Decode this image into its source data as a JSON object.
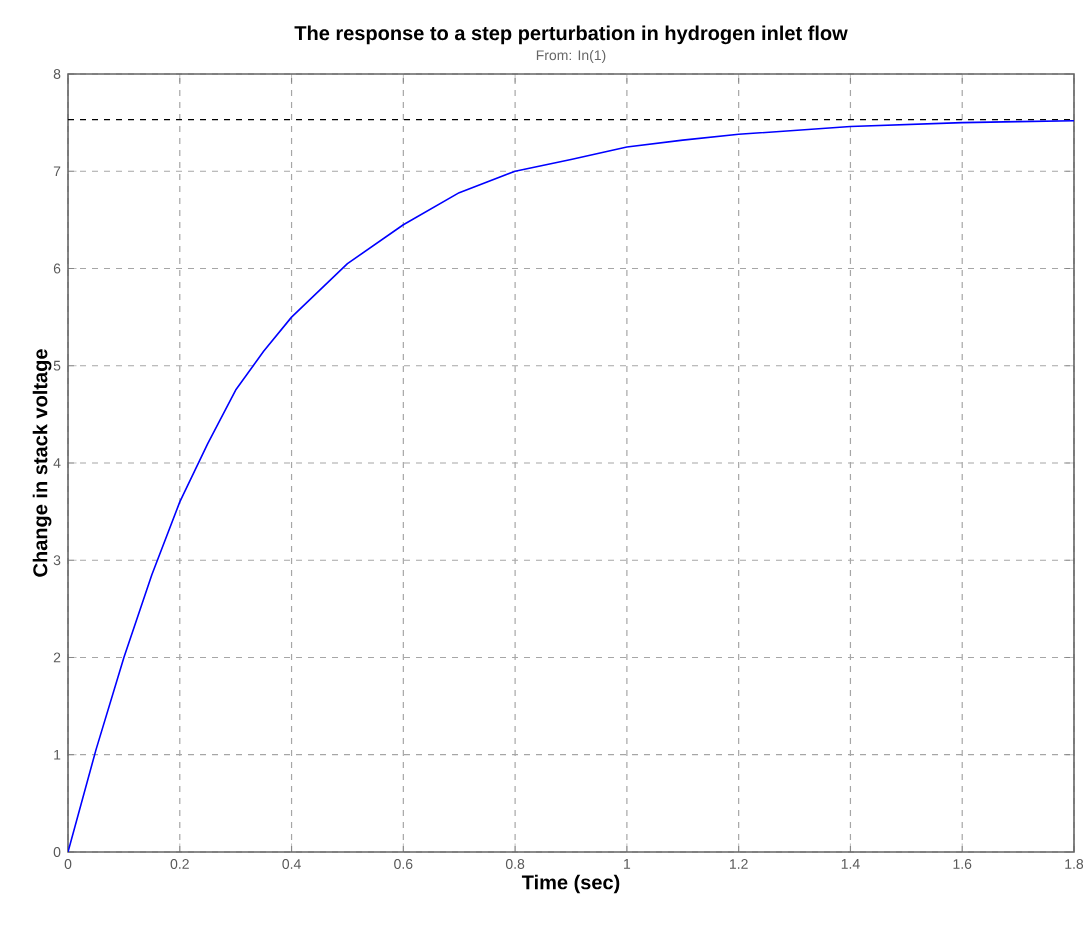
{
  "chart_data": {
    "type": "line",
    "title": "The response to a step perturbation in hydrogen inlet flow",
    "subtitle": "From: In(1)",
    "xlabel": "Time (sec)",
    "ylabel": "Change in stack voltage",
    "x": [
      0,
      0.05,
      0.1,
      0.15,
      0.2,
      0.25,
      0.3,
      0.35,
      0.4,
      0.5,
      0.6,
      0.7,
      0.8,
      0.9,
      1.0,
      1.1,
      1.2,
      1.3,
      1.4,
      1.5,
      1.6,
      1.7,
      1.8
    ],
    "series": [
      {
        "color": "#0000ff",
        "values": [
          0,
          1.05,
          2.0,
          2.85,
          3.6,
          4.2,
          4.75,
          5.15,
          5.5,
          6.05,
          6.45,
          6.78,
          7.0,
          7.12,
          7.25,
          7.32,
          7.38,
          7.42,
          7.46,
          7.48,
          7.5,
          7.51,
          7.52
        ]
      }
    ],
    "xlim": [
      0,
      1.8
    ],
    "ylim": [
      0,
      8
    ],
    "xticks": [
      0,
      0.2,
      0.4,
      0.6,
      0.8,
      1,
      1.2,
      1.4,
      1.6,
      1.8
    ],
    "yticks": [
      0,
      1,
      2,
      3,
      4,
      5,
      6,
      7,
      8
    ],
    "grid": true,
    "line_style": "solid",
    "marker": "none",
    "ref_lines": [
      {
        "axis": "y",
        "value": 7.53,
        "color": "#000000",
        "line_style": "dashed"
      }
    ]
  }
}
